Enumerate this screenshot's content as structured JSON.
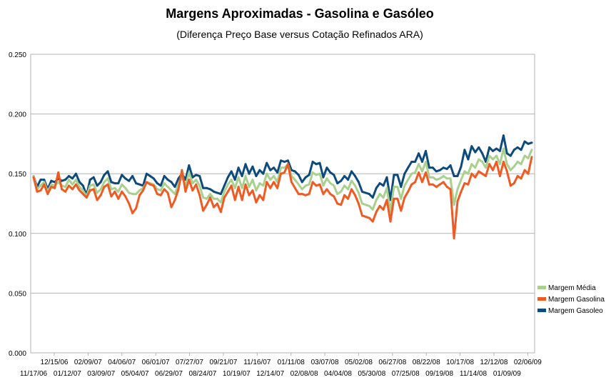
{
  "chart_data": {
    "type": "line",
    "title": "Margens Aproximadas - Gasolina e Gasóleo",
    "subtitle": "(Diferença Preço Base versus Cotação Refinados ARA)",
    "xlabel": "",
    "ylabel": "",
    "ylim": [
      0,
      0.25
    ],
    "y_ticks": [
      "0.000",
      "0.050",
      "0.100",
      "0.150",
      "0.200",
      "0.250"
    ],
    "grid": "horizontal",
    "legend_position": "right",
    "x_tick_labels_row1": [
      "12/15/06",
      "02/09/07",
      "04/06/07",
      "06/01/07",
      "07/27/07",
      "09/21/07",
      "11/16/07",
      "01/11/08",
      "03/07/08",
      "05/02/08",
      "06/27/08",
      "08/22/08",
      "10/17/08",
      "12/12/08",
      "02/06/09"
    ],
    "x_tick_labels_row2": [
      "11/17/06",
      "01/12/07",
      "03/09/07",
      "05/04/07",
      "06/29/07",
      "08/24/07",
      "10/19/07",
      "12/14/07",
      "02/08/08",
      "04/04/08",
      "05/30/08",
      "07/25/08",
      "09/19/08",
      "11/14/08",
      "01/09/09"
    ],
    "series": [
      {
        "name": "Margem Gasoleo",
        "color": "#0d4a7d",
        "values": [
          0.148,
          0.139,
          0.145,
          0.145,
          0.137,
          0.144,
          0.143,
          0.146,
          0.144,
          0.145,
          0.148,
          0.146,
          0.15,
          0.143,
          0.14,
          0.132,
          0.145,
          0.147,
          0.14,
          0.143,
          0.149,
          0.152,
          0.143,
          0.142,
          0.142,
          0.149,
          0.146,
          0.144,
          0.148,
          0.142,
          0.141,
          0.14,
          0.15,
          0.148,
          0.146,
          0.142,
          0.14,
          0.148,
          0.145,
          0.143,
          0.139,
          0.146,
          0.15,
          0.145,
          0.157,
          0.147,
          0.149,
          0.148,
          0.138,
          0.138,
          0.137,
          0.135,
          0.134,
          0.133,
          0.14,
          0.147,
          0.152,
          0.145,
          0.155,
          0.148,
          0.158,
          0.15,
          0.156,
          0.148,
          0.153,
          0.15,
          0.159,
          0.153,
          0.155,
          0.151,
          0.161,
          0.16,
          0.161,
          0.153,
          0.152,
          0.149,
          0.143,
          0.147,
          0.149,
          0.16,
          0.158,
          0.159,
          0.147,
          0.155,
          0.151,
          0.149,
          0.142,
          0.144,
          0.148,
          0.145,
          0.152,
          0.148,
          0.143,
          0.135,
          0.134,
          0.133,
          0.13,
          0.138,
          0.142,
          0.14,
          0.147,
          0.128,
          0.149,
          0.149,
          0.139,
          0.15,
          0.155,
          0.16,
          0.16,
          0.167,
          0.16,
          0.169,
          0.155,
          0.155,
          0.152,
          0.153,
          0.155,
          0.154,
          0.157,
          0.148,
          0.148,
          0.156,
          0.17,
          0.162,
          0.173,
          0.168,
          0.172,
          0.167,
          0.16,
          0.172,
          0.169,
          0.171,
          0.169,
          0.182,
          0.167,
          0.165,
          0.17,
          0.172,
          0.17,
          0.177,
          0.175,
          0.176
        ]
      },
      {
        "name": "Margem Média",
        "color": "#a9d08e",
        "values": [
          0.148,
          0.137,
          0.14,
          0.143,
          0.135,
          0.141,
          0.14,
          0.143,
          0.14,
          0.139,
          0.145,
          0.141,
          0.145,
          0.139,
          0.136,
          0.131,
          0.14,
          0.141,
          0.134,
          0.137,
          0.143,
          0.146,
          0.137,
          0.138,
          0.135,
          0.141,
          0.138,
          0.134,
          0.133,
          0.133,
          0.136,
          0.138,
          0.143,
          0.142,
          0.141,
          0.137,
          0.136,
          0.142,
          0.139,
          0.136,
          0.133,
          0.141,
          0.147,
          0.14,
          0.151,
          0.142,
          0.145,
          0.14,
          0.13,
          0.129,
          0.133,
          0.129,
          0.129,
          0.126,
          0.135,
          0.141,
          0.145,
          0.138,
          0.147,
          0.138,
          0.148,
          0.139,
          0.145,
          0.136,
          0.142,
          0.14,
          0.15,
          0.145,
          0.148,
          0.143,
          0.155,
          0.155,
          0.158,
          0.148,
          0.145,
          0.141,
          0.137,
          0.14,
          0.141,
          0.151,
          0.149,
          0.15,
          0.14,
          0.146,
          0.142,
          0.14,
          0.133,
          0.135,
          0.14,
          0.137,
          0.144,
          0.14,
          0.134,
          0.125,
          0.124,
          0.123,
          0.12,
          0.128,
          0.133,
          0.13,
          0.138,
          0.118,
          0.139,
          0.139,
          0.129,
          0.14,
          0.145,
          0.15,
          0.151,
          0.158,
          0.152,
          0.16,
          0.147,
          0.147,
          0.145,
          0.146,
          0.148,
          0.146,
          0.146,
          0.124,
          0.137,
          0.145,
          0.152,
          0.15,
          0.158,
          0.155,
          0.162,
          0.16,
          0.155,
          0.165,
          0.162,
          0.165,
          0.158,
          0.171,
          0.158,
          0.153,
          0.156,
          0.16,
          0.158,
          0.165,
          0.163,
          0.17
        ]
      },
      {
        "name": "Margem Gasolina",
        "color": "#f05a23",
        "values": [
          0.147,
          0.135,
          0.136,
          0.141,
          0.133,
          0.139,
          0.138,
          0.151,
          0.137,
          0.135,
          0.14,
          0.137,
          0.141,
          0.136,
          0.133,
          0.13,
          0.136,
          0.137,
          0.128,
          0.132,
          0.139,
          0.141,
          0.131,
          0.135,
          0.129,
          0.135,
          0.131,
          0.125,
          0.117,
          0.121,
          0.132,
          0.136,
          0.143,
          0.141,
          0.14,
          0.133,
          0.132,
          0.137,
          0.134,
          0.122,
          0.128,
          0.137,
          0.153,
          0.135,
          0.145,
          0.136,
          0.141,
          0.132,
          0.119,
          0.124,
          0.13,
          0.122,
          0.125,
          0.118,
          0.13,
          0.135,
          0.14,
          0.128,
          0.139,
          0.128,
          0.141,
          0.132,
          0.136,
          0.126,
          0.132,
          0.128,
          0.143,
          0.138,
          0.143,
          0.138,
          0.15,
          0.151,
          0.158,
          0.143,
          0.138,
          0.133,
          0.133,
          0.132,
          0.133,
          0.143,
          0.14,
          0.141,
          0.133,
          0.137,
          0.133,
          0.131,
          0.125,
          0.124,
          0.132,
          0.129,
          0.137,
          0.132,
          0.125,
          0.115,
          0.114,
          0.113,
          0.11,
          0.118,
          0.123,
          0.12,
          0.128,
          0.11,
          0.129,
          0.129,
          0.119,
          0.13,
          0.135,
          0.141,
          0.143,
          0.151,
          0.143,
          0.151,
          0.141,
          0.141,
          0.139,
          0.141,
          0.143,
          0.139,
          0.137,
          0.096,
          0.127,
          0.135,
          0.142,
          0.141,
          0.15,
          0.147,
          0.152,
          0.15,
          0.148,
          0.158,
          0.153,
          0.16,
          0.148,
          0.16,
          0.152,
          0.14,
          0.142,
          0.148,
          0.146,
          0.153,
          0.15,
          0.164
        ]
      }
    ]
  }
}
